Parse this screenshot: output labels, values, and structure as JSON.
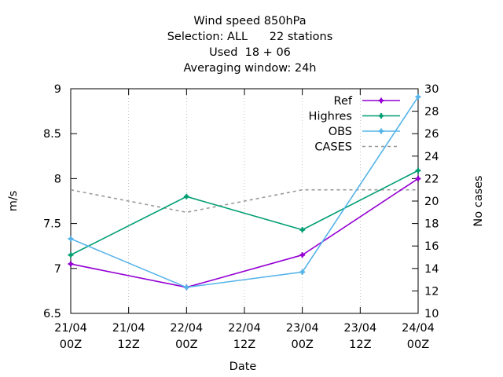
{
  "chart_data": {
    "type": "line",
    "title_lines": [
      "Wind speed 850hPa",
      "Selection: ALL      22 stations",
      "Used  18 + 06",
      "Averaging window: 24h"
    ],
    "xlabel": "Date",
    "ylabel": "m/s",
    "y2label": "No cases",
    "x_ticks": [
      {
        "x": 0,
        "line1": "21/04",
        "line2": "00Z"
      },
      {
        "x": 12,
        "line1": "21/04",
        "line2": "12Z"
      },
      {
        "x": 24,
        "line1": "22/04",
        "line2": "00Z"
      },
      {
        "x": 36,
        "line1": "22/04",
        "line2": "12Z"
      },
      {
        "x": 48,
        "line1": "23/04",
        "line2": "00Z"
      },
      {
        "x": 60,
        "line1": "23/04",
        "line2": "12Z"
      },
      {
        "x": 72,
        "line1": "24/04",
        "line2": "00Z"
      }
    ],
    "xlim": [
      0,
      72
    ],
    "ylim": [
      6.5,
      9
    ],
    "y_ticks": [
      "6.5",
      "7",
      "7.5",
      "8",
      "8.5",
      "9"
    ],
    "y2lim": [
      10,
      30
    ],
    "y2_ticks": [
      "10",
      "12",
      "14",
      "16",
      "18",
      "20",
      "22",
      "24",
      "26",
      "28",
      "30"
    ],
    "legend_position": "top-right",
    "series": [
      {
        "name": "Ref",
        "axis": "y",
        "color": "#9400d3",
        "style": "solid",
        "marker": true,
        "x": [
          0,
          24,
          48,
          72
        ],
        "values": [
          7.05,
          6.79,
          7.15,
          8.0
        ]
      },
      {
        "name": "Highres",
        "axis": "y",
        "color": "#009e73",
        "style": "solid",
        "marker": true,
        "x": [
          0,
          24,
          48,
          72
        ],
        "values": [
          7.15,
          7.8,
          7.43,
          8.09
        ]
      },
      {
        "name": "OBS",
        "axis": "y",
        "color": "#56b4e9",
        "style": "solid",
        "marker": true,
        "x": [
          0,
          24,
          48,
          72
        ],
        "values": [
          7.33,
          6.79,
          6.96,
          8.91
        ]
      },
      {
        "name": "CASES",
        "axis": "y2",
        "color": "#999999",
        "style": "dashed",
        "marker": false,
        "x": [
          0,
          24,
          48,
          72
        ],
        "values": [
          21,
          19,
          21,
          21
        ]
      }
    ]
  }
}
